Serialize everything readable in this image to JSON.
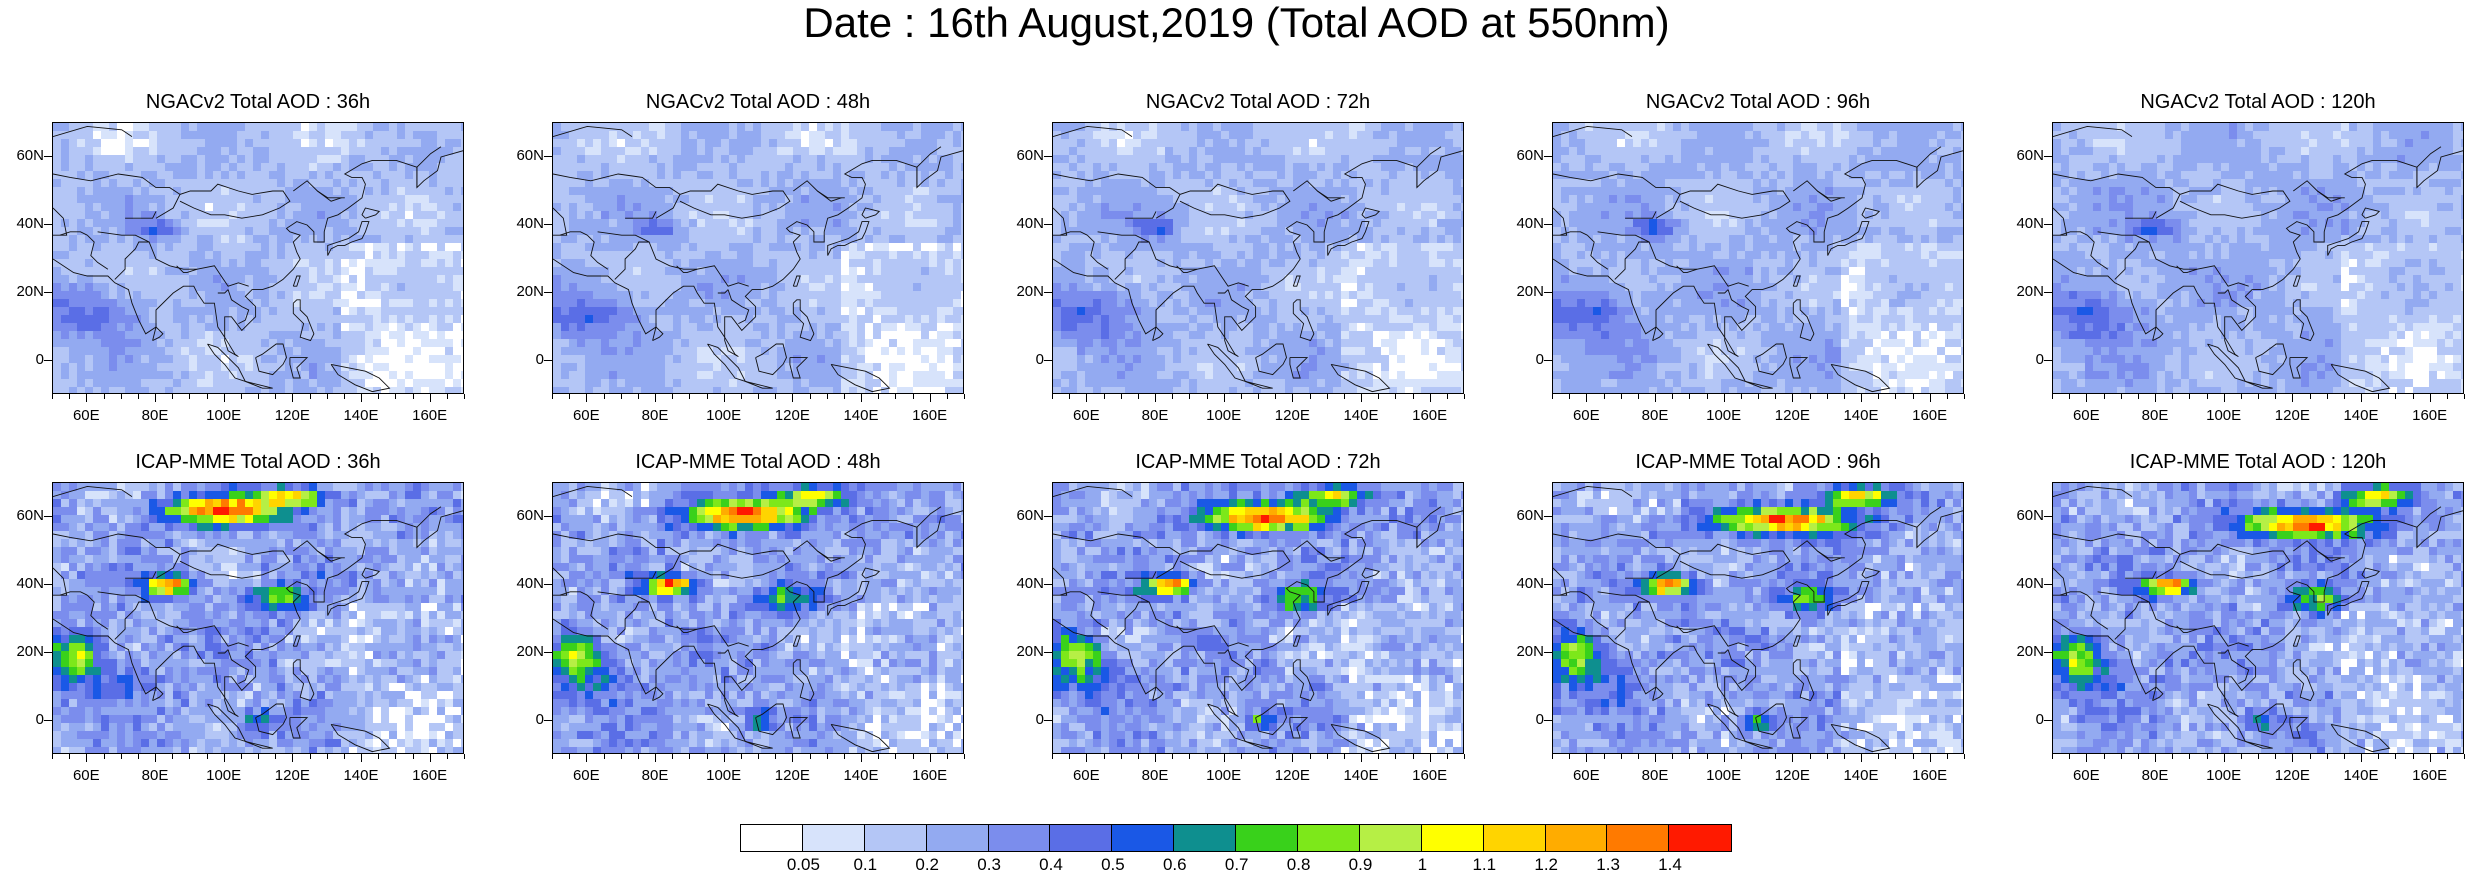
{
  "title": "Date : 16th August,2019 (Total AOD at 550nm)",
  "panels": [
    {
      "title": "NGACv2 Total AOD : 36h",
      "model": "NGACv2",
      "lead": "36h"
    },
    {
      "title": "NGACv2 Total AOD : 48h",
      "model": "NGACv2",
      "lead": "48h"
    },
    {
      "title": "NGACv2 Total AOD : 72h",
      "model": "NGACv2",
      "lead": "72h"
    },
    {
      "title": "NGACv2 Total AOD : 96h",
      "model": "NGACv2",
      "lead": "96h"
    },
    {
      "title": "NGACv2 Total AOD : 120h",
      "model": "NGACv2",
      "lead": "120h"
    },
    {
      "title": "ICAP-MME Total AOD : 36h",
      "model": "ICAP-MME",
      "lead": "36h"
    },
    {
      "title": "ICAP-MME Total AOD : 48h",
      "model": "ICAP-MME",
      "lead": "48h"
    },
    {
      "title": "ICAP-MME Total AOD : 72h",
      "model": "ICAP-MME",
      "lead": "72h"
    },
    {
      "title": "ICAP-MME Total AOD : 96h",
      "model": "ICAP-MME",
      "lead": "96h"
    },
    {
      "title": "ICAP-MME Total AOD : 120h",
      "model": "ICAP-MME",
      "lead": "120h"
    }
  ],
  "axes": {
    "lat_labels": [
      "60N",
      "40N",
      "20N",
      "0"
    ],
    "lat_values": [
      60,
      40,
      20,
      0
    ],
    "lon_labels": [
      "60E",
      "80E",
      "100E",
      "120E",
      "140E",
      "160E"
    ],
    "lon_values": [
      60,
      80,
      100,
      120,
      140,
      160
    ],
    "lon_range": [
      50,
      170
    ],
    "lat_range": [
      -10,
      70
    ]
  },
  "colorbar": {
    "labels": [
      "0.05",
      "0.1",
      "0.2",
      "0.3",
      "0.4",
      "0.5",
      "0.6",
      "0.7",
      "0.8",
      "0.9",
      "1",
      "1.1",
      "1.2",
      "1.3",
      "1.4"
    ],
    "colors": [
      "#ffffff",
      "#d7e3fb",
      "#b4c6f6",
      "#93aaf1",
      "#7b8ded",
      "#5a6ee6",
      "#1a58e6",
      "#0e8f8f",
      "#39d11b",
      "#7de81a",
      "#b6ef45",
      "#ffff00",
      "#ffd400",
      "#ffac00",
      "#ff7a00",
      "#ff1a00"
    ]
  },
  "icons": {
    "coastline": "coastline-outline"
  }
}
